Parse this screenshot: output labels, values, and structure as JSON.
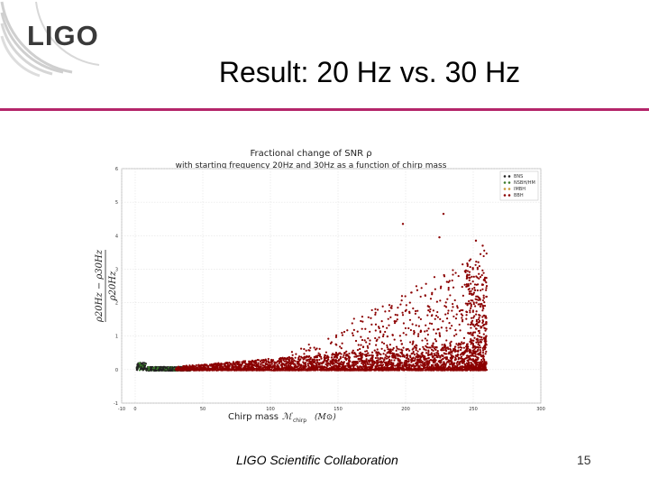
{
  "slide": {
    "logo_text": "LIGO",
    "title": "Result: 20 Hz vs. 30 Hz",
    "footer_collaboration": "LIGO Scientific Collaboration",
    "page_number": "15",
    "accent_color": "#b4256a"
  },
  "chart_data": {
    "type": "scatter",
    "title": "Fractional change of SNR ρ",
    "subtitle": "with starting frequency 20Hz and 30Hz as a function of chirp mass",
    "xlabel": "Chirp mass",
    "xlabel_math": "ℳ",
    "xlabel_sub": "chirp",
    "xlabel_unit": "(M⊙)",
    "ylabel_numerator": "ρ20Hz − ρ30Hz",
    "ylabel_denominator": "ρ20Hz",
    "xlim": [
      -10,
      300
    ],
    "ylim": [
      -1,
      6
    ],
    "xticks": [
      -10,
      0,
      50,
      100,
      150,
      200,
      250,
      300
    ],
    "yticks": [
      -1,
      0,
      1,
      2,
      3,
      4,
      5,
      6
    ],
    "grid": true,
    "legend_position": "top-right",
    "series": [
      {
        "name": "BNS",
        "color": "#222222"
      },
      {
        "name": "NSBH/HM",
        "color": "#3a7a2a"
      },
      {
        "name": "IMBH",
        "color": "#c89a3a"
      },
      {
        "name": "BBH",
        "color": "#8b0000"
      }
    ],
    "notable_points": [
      {
        "x": 198,
        "y": 4.35
      },
      {
        "x": 228,
        "y": 4.65
      },
      {
        "x": 225,
        "y": 3.95
      },
      {
        "x": 252,
        "y": 3.85
      },
      {
        "x": 257,
        "y": 3.7
      }
    ]
  }
}
